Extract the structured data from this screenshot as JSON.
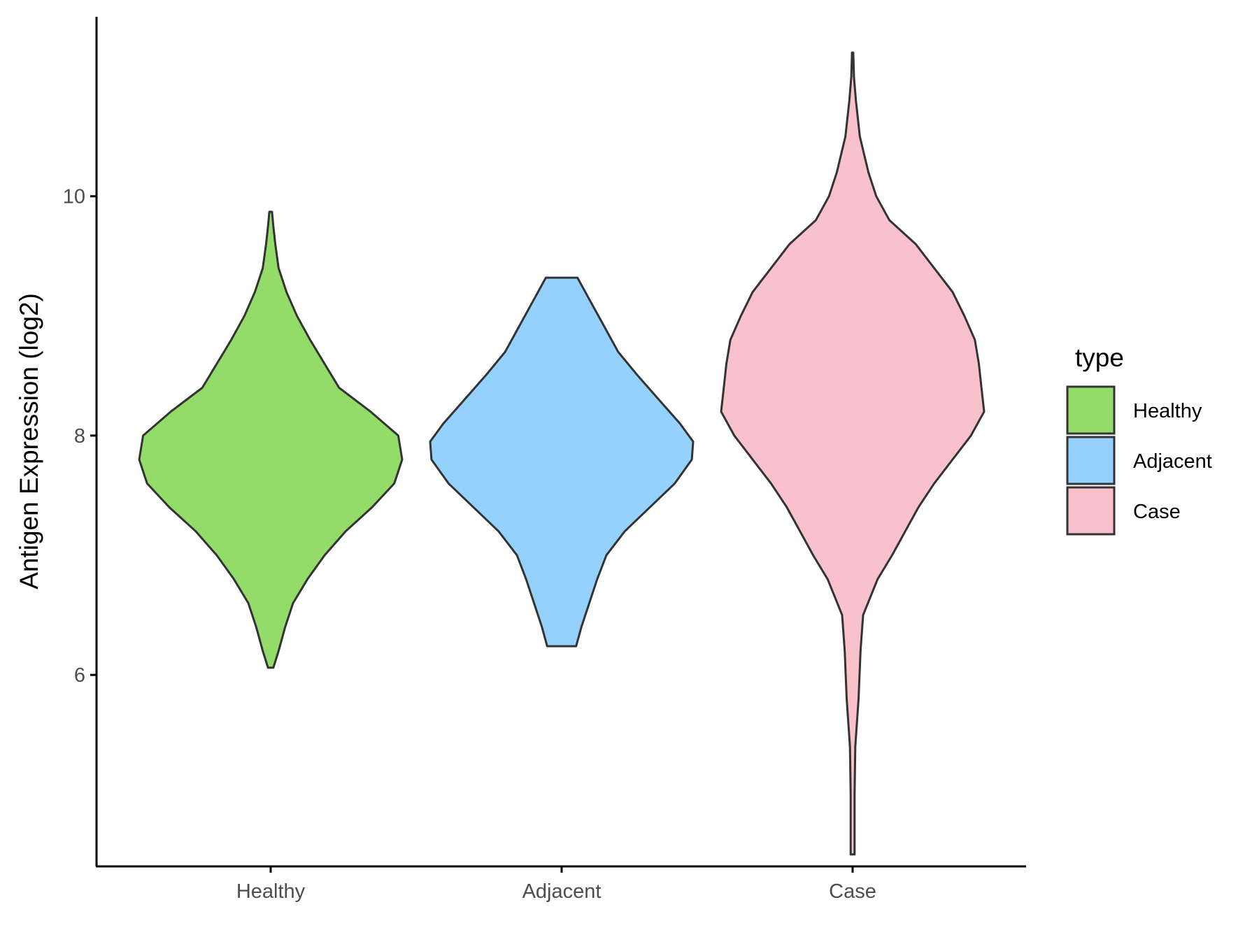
{
  "chart_data": {
    "type": "violin",
    "title": "",
    "xlabel": "",
    "ylabel": "Antigen Expression (log2)",
    "ylim": [
      4.4,
      11.5
    ],
    "yticks": [
      6,
      8,
      10
    ],
    "categories": [
      "Healthy",
      "Adjacent",
      "Case"
    ],
    "legend": {
      "title": "type",
      "position": "right",
      "entries": [
        "Healthy",
        "Adjacent",
        "Case"
      ]
    },
    "grid": false,
    "series": [
      {
        "name": "Healthy",
        "color": "#93DC69",
        "min": 6.06,
        "max": 9.87,
        "density": [
          [
            6.06,
            0.02
          ],
          [
            6.2,
            0.06
          ],
          [
            6.4,
            0.11
          ],
          [
            6.6,
            0.17
          ],
          [
            6.8,
            0.28
          ],
          [
            7.0,
            0.41
          ],
          [
            7.2,
            0.57
          ],
          [
            7.4,
            0.77
          ],
          [
            7.6,
            0.94
          ],
          [
            7.8,
            1.0
          ],
          [
            8.0,
            0.97
          ],
          [
            8.2,
            0.76
          ],
          [
            8.4,
            0.52
          ],
          [
            8.6,
            0.41
          ],
          [
            8.8,
            0.3
          ],
          [
            9.0,
            0.2
          ],
          [
            9.2,
            0.12
          ],
          [
            9.4,
            0.06
          ],
          [
            9.6,
            0.035
          ],
          [
            9.75,
            0.02
          ],
          [
            9.87,
            0.01
          ]
        ]
      },
      {
        "name": "Adjacent",
        "color": "#94D2FD",
        "min": 6.24,
        "max": 9.32,
        "density": [
          [
            6.24,
            0.11
          ],
          [
            6.4,
            0.15
          ],
          [
            6.6,
            0.21
          ],
          [
            6.8,
            0.27
          ],
          [
            7.0,
            0.34
          ],
          [
            7.2,
            0.48
          ],
          [
            7.4,
            0.67
          ],
          [
            7.6,
            0.86
          ],
          [
            7.8,
            0.99
          ],
          [
            7.95,
            1.0
          ],
          [
            8.1,
            0.9
          ],
          [
            8.3,
            0.74
          ],
          [
            8.5,
            0.58
          ],
          [
            8.7,
            0.43
          ],
          [
            8.9,
            0.33
          ],
          [
            9.1,
            0.23
          ],
          [
            9.32,
            0.12
          ]
        ]
      },
      {
        "name": "Case",
        "color": "#F8C1CC",
        "min": 4.5,
        "max": 11.2,
        "density": [
          [
            4.5,
            0.015
          ],
          [
            5.0,
            0.015
          ],
          [
            5.4,
            0.02
          ],
          [
            5.8,
            0.045
          ],
          [
            6.2,
            0.06
          ],
          [
            6.5,
            0.08
          ],
          [
            6.8,
            0.19
          ],
          [
            7.0,
            0.3
          ],
          [
            7.2,
            0.4
          ],
          [
            7.4,
            0.5
          ],
          [
            7.6,
            0.62
          ],
          [
            7.8,
            0.76
          ],
          [
            8.0,
            0.9
          ],
          [
            8.2,
            1.0
          ],
          [
            8.4,
            0.98
          ],
          [
            8.6,
            0.96
          ],
          [
            8.8,
            0.93
          ],
          [
            9.0,
            0.85
          ],
          [
            9.2,
            0.76
          ],
          [
            9.4,
            0.62
          ],
          [
            9.6,
            0.48
          ],
          [
            9.8,
            0.28
          ],
          [
            10.0,
            0.18
          ],
          [
            10.2,
            0.12
          ],
          [
            10.5,
            0.055
          ],
          [
            10.8,
            0.025
          ],
          [
            11.0,
            0.01
          ],
          [
            11.2,
            0.005
          ]
        ]
      }
    ]
  }
}
